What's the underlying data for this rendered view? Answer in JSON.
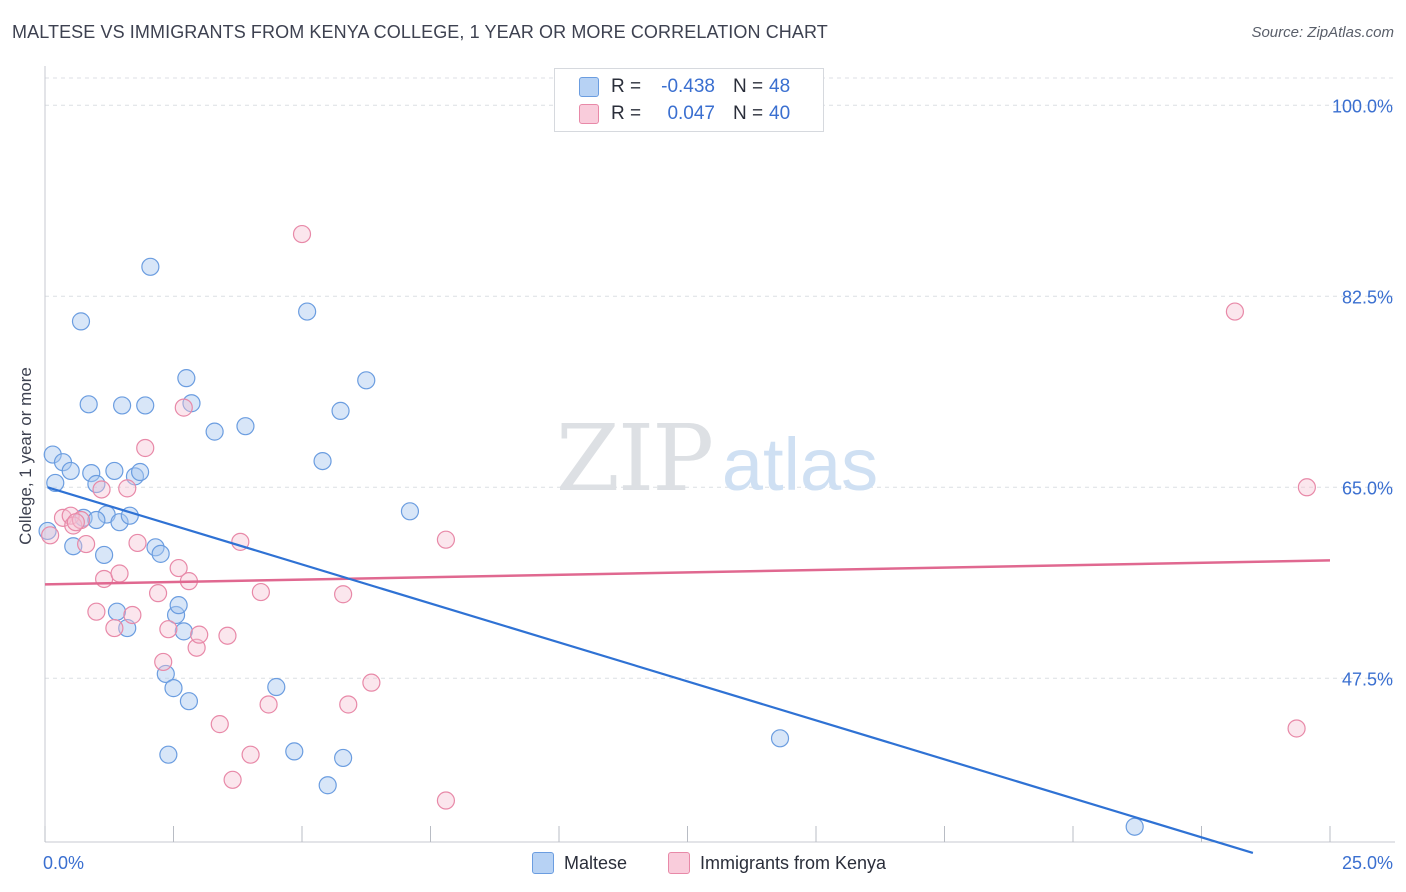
{
  "title": "MALTESE VS IMMIGRANTS FROM KENYA COLLEGE, 1 YEAR OR MORE CORRELATION CHART",
  "source": "Source: ZipAtlas.com",
  "watermark": {
    "zip": "ZIP",
    "atlas": "atlas"
  },
  "legend_stats": [
    {
      "r_label": "R =",
      "r_value": "-0.438",
      "n_label": "N =",
      "n_value": "48"
    },
    {
      "r_label": "R =",
      "r_value": "0.047",
      "n_label": "N =",
      "n_value": "40"
    }
  ],
  "colors": {
    "maltese_fill": "#a8c8f0",
    "maltese_stroke": "#6b9de0",
    "maltese_line": "#2f72d4",
    "kenya_fill": "#f6c0d2",
    "kenya_stroke": "#e889a8",
    "kenya_line": "#e06890",
    "tick_label": "#3a6fd0",
    "grid": "#dcdfe4"
  },
  "chart_data": {
    "type": "scatter",
    "title": "MALTESE VS IMMIGRANTS FROM KENYA COLLEGE, 1 YEAR OR MORE CORRELATION CHART",
    "xlabel": "",
    "ylabel": "College, 1 year or more",
    "xlim": [
      0,
      25
    ],
    "ylim": [
      32.5,
      102.5
    ],
    "x_tick_labels": [
      "0.0%",
      "25.0%"
    ],
    "y_ticks": [
      47.5,
      65.0,
      82.5,
      100.0
    ],
    "y_tick_labels": [
      "47.5%",
      "65.0%",
      "82.5%",
      "100.0%"
    ],
    "grid": true,
    "legend_position": "bottom",
    "series": [
      {
        "name": "Maltese",
        "points": [
          [
            0.05,
            61.0
          ],
          [
            0.2,
            65.4
          ],
          [
            0.15,
            68.0
          ],
          [
            0.35,
            67.3
          ],
          [
            0.5,
            66.5
          ],
          [
            0.55,
            59.6
          ],
          [
            0.7,
            80.2
          ],
          [
            0.85,
            72.6
          ],
          [
            0.9,
            66.3
          ],
          [
            1.0,
            65.3
          ],
          [
            1.2,
            62.5
          ],
          [
            1.15,
            58.8
          ],
          [
            1.35,
            66.5
          ],
          [
            1.4,
            53.6
          ],
          [
            1.45,
            61.8
          ],
          [
            1.5,
            72.5
          ],
          [
            1.6,
            52.1
          ],
          [
            1.65,
            62.4
          ],
          [
            1.75,
            66.0
          ],
          [
            1.85,
            66.4
          ],
          [
            1.95,
            72.5
          ],
          [
            2.05,
            85.2
          ],
          [
            2.15,
            59.5
          ],
          [
            2.25,
            58.9
          ],
          [
            2.35,
            47.9
          ],
          [
            2.4,
            40.5
          ],
          [
            2.5,
            46.6
          ],
          [
            2.55,
            53.3
          ],
          [
            2.6,
            54.2
          ],
          [
            2.7,
            51.8
          ],
          [
            2.75,
            75.0
          ],
          [
            2.8,
            45.4
          ],
          [
            2.85,
            72.7
          ],
          [
            3.3,
            70.1
          ],
          [
            3.9,
            70.6
          ],
          [
            4.5,
            46.7
          ],
          [
            4.85,
            40.8
          ],
          [
            5.1,
            81.1
          ],
          [
            5.4,
            67.4
          ],
          [
            5.5,
            37.7
          ],
          [
            5.75,
            72.0
          ],
          [
            5.8,
            40.2
          ],
          [
            6.25,
            74.8
          ],
          [
            7.1,
            62.8
          ],
          [
            14.3,
            42.0
          ],
          [
            21.2,
            33.9
          ],
          [
            0.75,
            62.2
          ],
          [
            1.0,
            62.0
          ]
        ],
        "trend": {
          "x1": 0.05,
          "y1": 65.0,
          "x2": 23.5,
          "y2": 31.5
        }
      },
      {
        "name": "Immigrants from Kenya",
        "points": [
          [
            0.1,
            60.6
          ],
          [
            0.35,
            62.2
          ],
          [
            0.5,
            62.4
          ],
          [
            0.55,
            61.5
          ],
          [
            0.7,
            62.0
          ],
          [
            0.8,
            59.8
          ],
          [
            1.0,
            53.6
          ],
          [
            1.1,
            64.8
          ],
          [
            1.15,
            56.6
          ],
          [
            1.35,
            52.1
          ],
          [
            1.45,
            57.1
          ],
          [
            1.6,
            64.9
          ],
          [
            1.7,
            53.3
          ],
          [
            1.8,
            59.9
          ],
          [
            1.95,
            68.6
          ],
          [
            2.2,
            55.3
          ],
          [
            2.3,
            49.0
          ],
          [
            2.4,
            52.0
          ],
          [
            2.6,
            57.6
          ],
          [
            2.7,
            72.3
          ],
          [
            2.8,
            56.4
          ],
          [
            2.95,
            50.3
          ],
          [
            3.0,
            51.5
          ],
          [
            3.4,
            43.3
          ],
          [
            3.55,
            51.4
          ],
          [
            3.65,
            38.2
          ],
          [
            3.8,
            60.0
          ],
          [
            4.0,
            40.5
          ],
          [
            4.2,
            55.4
          ],
          [
            4.35,
            45.1
          ],
          [
            5.0,
            88.2
          ],
          [
            5.8,
            55.2
          ],
          [
            5.9,
            45.1
          ],
          [
            6.35,
            47.1
          ],
          [
            7.8,
            36.3
          ],
          [
            7.8,
            60.2
          ],
          [
            23.15,
            81.1
          ],
          [
            24.35,
            42.9
          ],
          [
            24.55,
            65.0
          ],
          [
            0.6,
            61.8
          ]
        ],
        "trend": {
          "x1": 0.0,
          "y1": 56.1,
          "x2": 25.0,
          "y2": 58.3
        }
      }
    ]
  }
}
